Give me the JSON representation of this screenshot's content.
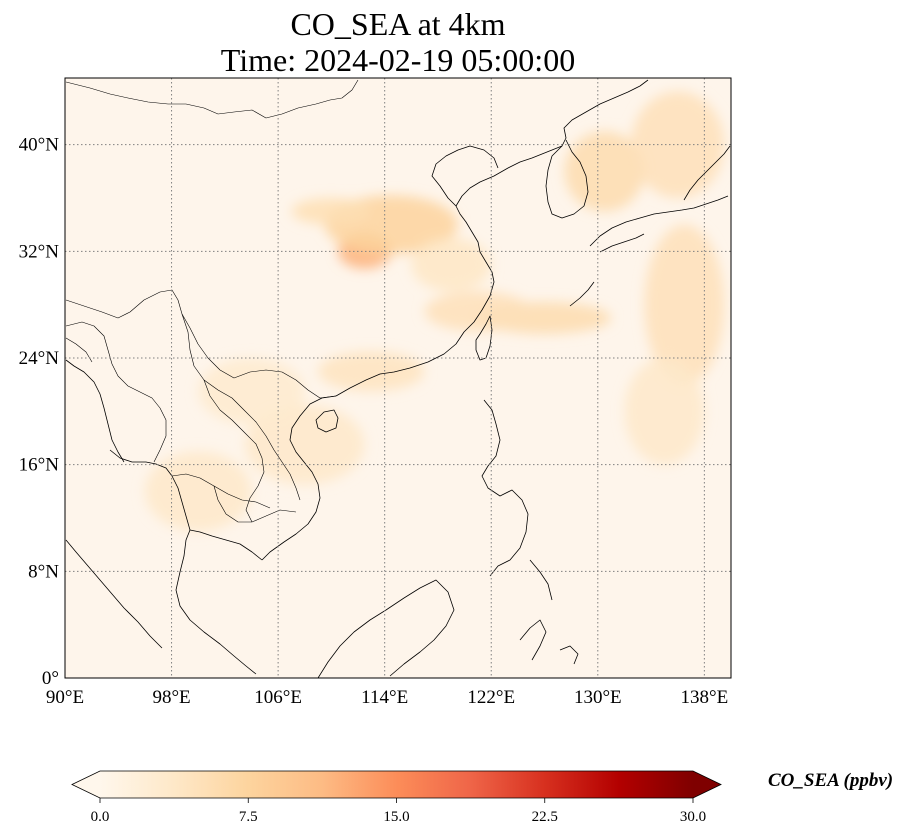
{
  "title": {
    "line1": "CO_SEA at 4km",
    "line2": "Time: 2024-02-19 05:00:00"
  },
  "map": {
    "projection": "PlateCarree",
    "lon_range": [
      90,
      140
    ],
    "lat_range": [
      0,
      45
    ],
    "gridlines": "dotted",
    "lon_ticks": [
      {
        "value": 90,
        "label": "90°E"
      },
      {
        "value": 98,
        "label": "98°E"
      },
      {
        "value": 106,
        "label": "106°E"
      },
      {
        "value": 114,
        "label": "114°E"
      },
      {
        "value": 122,
        "label": "122°E"
      },
      {
        "value": 130,
        "label": "130°E"
      },
      {
        "value": 138,
        "label": "138°E"
      }
    ],
    "lat_ticks": [
      {
        "value": 0,
        "label": "0°"
      },
      {
        "value": 8,
        "label": "8°N"
      },
      {
        "value": 16,
        "label": "16°N"
      },
      {
        "value": 24,
        "label": "24°N"
      },
      {
        "value": 32,
        "label": "32°N"
      },
      {
        "value": 40,
        "label": "40°N"
      }
    ],
    "plumes": [
      {
        "lon": 112.5,
        "lat": 32.0,
        "rlon": 2.0,
        "rlat": 1.3,
        "value": 12.0
      },
      {
        "lon": 114.5,
        "lat": 34.0,
        "rlon": 5.0,
        "rlat": 2.2,
        "value": 7.5
      },
      {
        "lon": 110.0,
        "lat": 35.0,
        "rlon": 3.0,
        "rlat": 1.0,
        "value": 5.5
      },
      {
        "lon": 126.0,
        "lat": 27.0,
        "rlon": 5.0,
        "rlat": 1.2,
        "value": 6.0
      },
      {
        "lon": 121.0,
        "lat": 27.5,
        "rlon": 4.0,
        "rlat": 1.5,
        "value": 5.0
      },
      {
        "lon": 130.5,
        "lat": 38.0,
        "rlon": 3.0,
        "rlat": 3.0,
        "value": 6.0
      },
      {
        "lon": 136.0,
        "lat": 40.0,
        "rlon": 3.5,
        "rlat": 4.0,
        "value": 5.0
      },
      {
        "lon": 136.5,
        "lat": 28.0,
        "rlon": 3.0,
        "rlat": 6.0,
        "value": 5.0
      },
      {
        "lon": 135.0,
        "lat": 20.0,
        "rlon": 3.0,
        "rlat": 4.0,
        "value": 3.5
      },
      {
        "lon": 113.0,
        "lat": 23.0,
        "rlon": 4.0,
        "rlat": 1.5,
        "value": 4.5
      },
      {
        "lon": 108.0,
        "lat": 17.5,
        "rlon": 4.5,
        "rlat": 3.0,
        "value": 3.5
      },
      {
        "lon": 104.0,
        "lat": 21.5,
        "rlon": 4.0,
        "rlat": 2.5,
        "value": 3.0
      },
      {
        "lon": 100.0,
        "lat": 14.0,
        "rlon": 4.0,
        "rlat": 3.0,
        "value": 3.5
      },
      {
        "lon": 119.0,
        "lat": 31.0,
        "rlon": 3.0,
        "rlat": 2.0,
        "value": 4.0
      }
    ]
  },
  "colorbar": {
    "label": "CO_SEA (ppbv)",
    "vmin": 0.0,
    "vmax": 30.0,
    "extend": "both",
    "cmap": "OrRd",
    "stops": [
      "#fff7ec",
      "#fee8c8",
      "#fdd49e",
      "#fdbb84",
      "#fc8d59",
      "#ef6548",
      "#d7301f",
      "#b30000",
      "#7f0000"
    ],
    "ticks": [
      {
        "value": 0.0,
        "label": "0.0"
      },
      {
        "value": 7.5,
        "label": "7.5"
      },
      {
        "value": 15.0,
        "label": "15.0"
      },
      {
        "value": 22.5,
        "label": "22.5"
      },
      {
        "value": 30.0,
        "label": "30.0"
      }
    ]
  }
}
